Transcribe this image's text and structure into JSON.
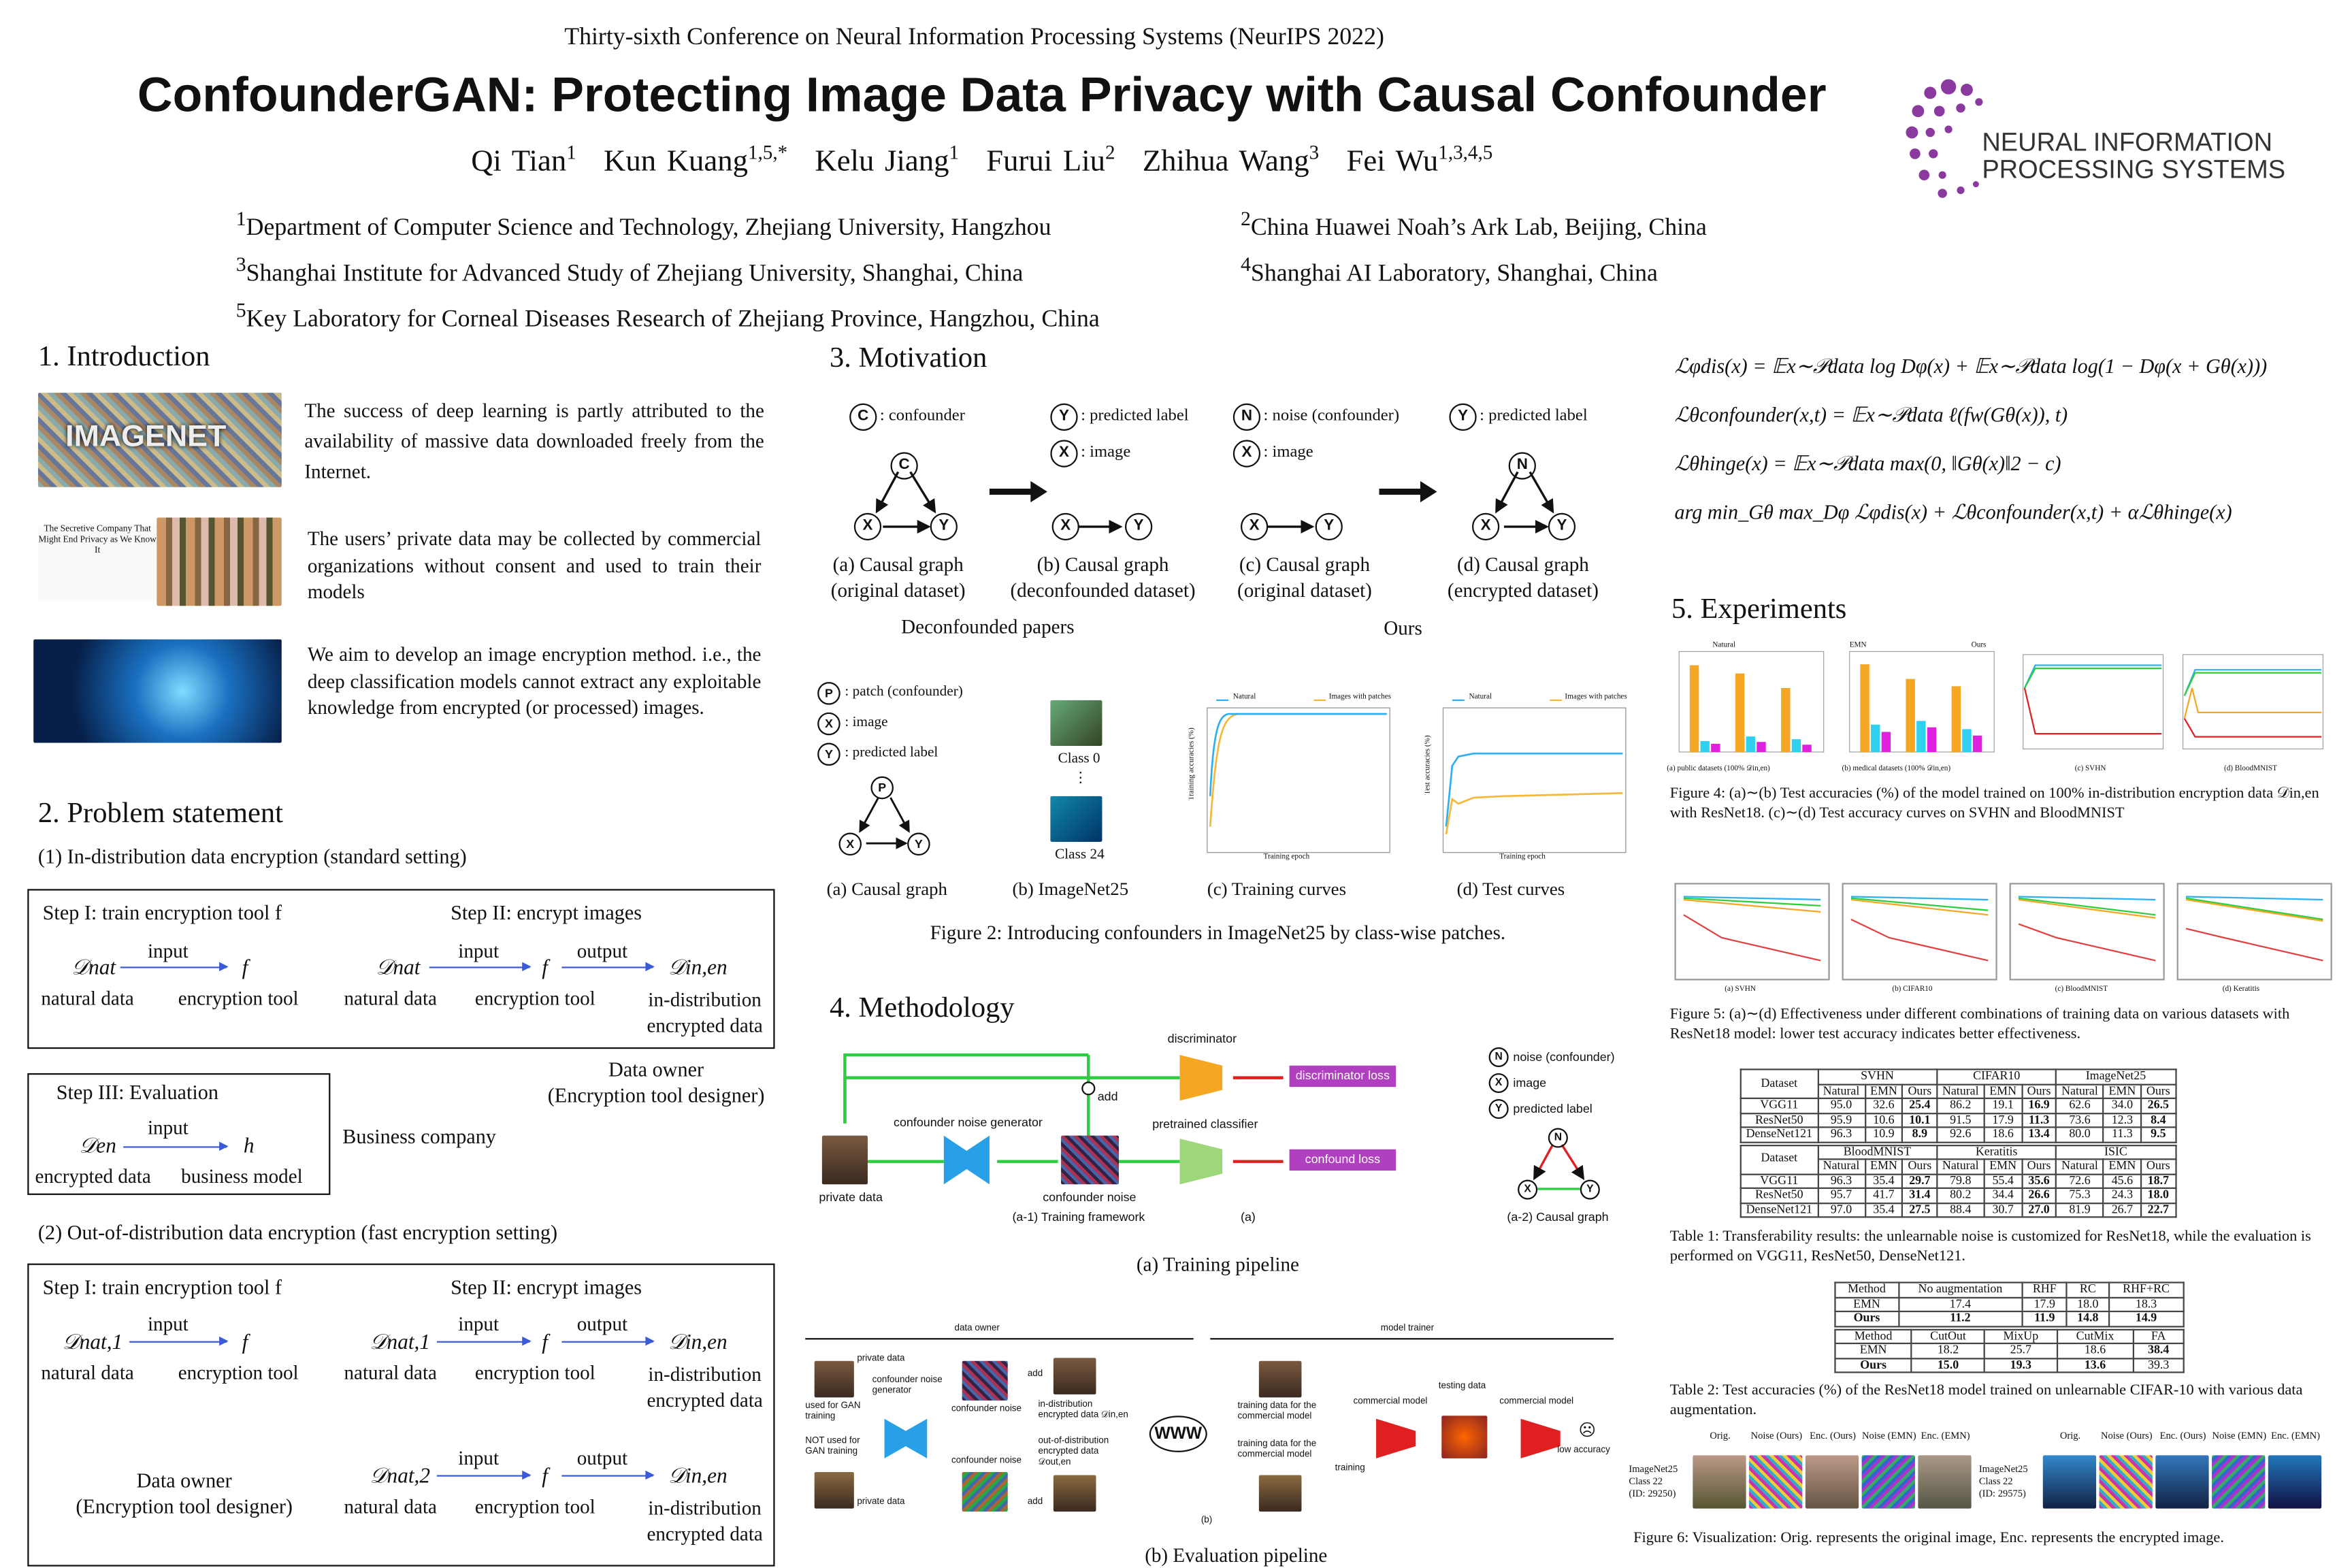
{
  "header": {
    "conference": "Thirty-sixth Conference on Neural Information Processing Systems (NeurIPS 2022)",
    "title": "ConfounderGAN: Protecting Image Data Privacy with Causal Confounder",
    "authors": [
      {
        "name": "Qi Tian",
        "sup": "1"
      },
      {
        "name": "Kun Kuang",
        "sup": "1,5,*"
      },
      {
        "name": "Kelu Jiang",
        "sup": "1"
      },
      {
        "name": "Furui Liu",
        "sup": "2"
      },
      {
        "name": "Zhihua Wang",
        "sup": "3"
      },
      {
        "name": "Fei Wu",
        "sup": "1,3,4,5"
      }
    ],
    "affiliations": [
      {
        "sup": "1",
        "text": "Department of Computer Science and Technology, Zhejiang University, Hangzhou"
      },
      {
        "sup": "3",
        "text": "Shanghai Institute for Advanced Study of Zhejiang University, Shanghai, China"
      },
      {
        "sup": "5",
        "text": "Key Laboratory for Corneal Diseases Research of Zhejiang Province, Hangzhou, China"
      },
      {
        "sup": "2",
        "text": "China Huawei Noah’s Ark Lab, Beijing, China"
      },
      {
        "sup": "4",
        "text": "Shanghai AI Laboratory, Shanghai, China"
      }
    ],
    "logo_text": [
      "NEURAL INFORMATION",
      "PROCESSING SYSTEMS"
    ],
    "logo_color": "#8a3a9e"
  },
  "intro": {
    "heading": "1. Introduction",
    "imagenet_logo": "IMAGENET",
    "news_caption": "The Secretive Company That Might End Privacy as We Know It",
    "para1": "The success of deep learning is partly attributed to the availability of massive data downloaded freely from the Internet.",
    "para2": "The users’ private data may be collected by commercial organizations without consent and used to train their models",
    "para3": "We aim to develop an image encryption method. i.e., the deep classification models cannot extract any exploitable knowledge from encrypted (or processed) images."
  },
  "problem": {
    "heading": "2. Problem statement",
    "sub1": "(1) In-distribution data encryption (standard setting)",
    "sub2": "(2) Out-of-distribution data encryption (fast encryption setting)",
    "step1": "Step I: train encryption tool f",
    "step2": "Step II: encrypt images",
    "step3": "Step III: Evaluation",
    "input": "input",
    "output": "output",
    "d_nat": "𝒟nat",
    "d_nat1": "𝒟nat,1",
    "d_nat2": "𝒟nat,2",
    "d_inen": "𝒟in,en",
    "d_en": "𝒟en",
    "f": "f",
    "h": "h",
    "natural_data": "natural data",
    "encryption_tool": "encryption tool",
    "in_dist": "in-distribution",
    "encrypted_data": "encrypted data",
    "business_model": "business model",
    "data_owner": "Data owner",
    "designer": "(Encryption tool designer)",
    "business_company": "Business company"
  },
  "motivation": {
    "heading": "3. Motivation",
    "legend": {
      "c": "C",
      "confounder": ": confounder",
      "y": "Y",
      "predicted": ": predicted label",
      "x": "X",
      "image": ": image",
      "n": "N",
      "noise": ": noise (confounder)"
    },
    "captions": [
      "(a) Causal graph",
      "(original dataset)",
      "(b) Causal graph",
      "(deconfounded dataset)",
      "(c) Causal graph",
      "(original dataset)",
      "(d) Causal graph",
      "(encrypted dataset)"
    ],
    "deconf_papers": "Deconfounded papers",
    "ours": "Ours",
    "fig2": {
      "p": "P",
      "patch": ": patch (confounder)",
      "image": ": image",
      "pred": ": predicted label",
      "class0": "Class 0",
      "dots": "⋮",
      "class24": "Class 24",
      "subcaps": [
        "(a)  Causal graph",
        "(b)  ImageNet25",
        "(c)  Training curves",
        "(d)  Test curves"
      ],
      "legend_natural": "Natural",
      "legend_patches": "Images with patches",
      "xlabel": "Training epoch",
      "ylabel_train": "Training accuracies (%)",
      "ylabel_test": "Test accuracies (%)",
      "caption": "Figure 2: Introducing confounders in ImageNet25 by class-wise patches."
    }
  },
  "method": {
    "heading": "4. Methodology",
    "train": {
      "discriminator": "discriminator",
      "disc_loss": "discriminator loss",
      "generator": "confounder noise generator",
      "add": "add",
      "pretrained": "pretrained classifier",
      "conf_loss": "confound loss",
      "private": "private data",
      "noise": "confounder noise",
      "sub": "(a-1) Training framework",
      "a": "(a)",
      "a2": "(a-2) Causal graph",
      "n": "noise (confounder)",
      "x": "image",
      "y": "predicted label",
      "caption": "(a) Training pipeline"
    },
    "eval": {
      "data_owner": "data owner",
      "model_trainer": "model trainer",
      "private": "private data",
      "used": "used for GAN training",
      "not_used": "NOT used for GAN training",
      "gen": "confounder noise generator",
      "noise": "confounder noise",
      "add": "add",
      "in_dist": "in-distribution encrypted data 𝒟in,en",
      "out_dist": "out-of-distribution encrypted data 𝒟out,en",
      "www": "WWW",
      "train1": "training data for the commercial model",
      "train2": "training data for the commercial model",
      "training": "training",
      "commercial": "commercial model",
      "testing": "testing data",
      "low": "low accuracy",
      "b": "(b)",
      "caption": "(b) Evaluation pipeline"
    }
  },
  "equations": [
    "ℒφdis(x) = 𝔼x∼𝒫data log Dφ(x) + 𝔼x∼𝒫data log(1 − Dφ(x + Gθ(x)))",
    "ℒθconfounder(x,t) = 𝔼x∼𝒫data ℓ(fw(Gθ(x)), t)",
    "ℒθhinge(x) = 𝔼x∼𝒫data max(0, ‖Gθ(x)‖2 − c)",
    "arg min_Gθ max_Dφ ℒφdis(x) + ℒθconfounder(x,t) + αℒθhinge(x)"
  ],
  "experiments": {
    "heading": "5. Experiments",
    "fig4_caption": "Figure 4: (a)∼(b) Test accuracies (%) of the model trained on 100% in-distribution encryption data 𝒟in,en with ResNet18. (c)∼(d) Test accuracy curves on SVHN and BloodMNIST",
    "fig4_subcaps": [
      "(a) public datasets (100% 𝒟in,en)",
      "(b) medical datasets (100% 𝒟in,en)",
      "(c) SVHN",
      "(d) BloodMNIST"
    ],
    "fig4_legend": [
      "Natural",
      "EMN",
      "Ours"
    ],
    "fig5_caption": "Figure 5: (a)∼(d) Effectiveness under different combinations of training data on various datasets with ResNet18 model: lower test accuracy indicates better effectiveness.",
    "fig5_subcaps": [
      "(a) SVHN",
      "(b) CIFAR10",
      "(c) BloodMNIST",
      "(d) Keratitis"
    ],
    "table1": {
      "head1": [
        "SVHN",
        "CIFAR10",
        "ImageNet25"
      ],
      "head2": [
        "BloodMNIST",
        "Keratitis",
        "ISIC"
      ],
      "dataset": "Dataset",
      "cols": [
        "Natural",
        "EMN",
        "Ours"
      ],
      "rows1": [
        [
          "VGG11",
          "95.0",
          "32.6",
          "25.4",
          "86.2",
          "19.1",
          "16.9",
          "62.6",
          "34.0",
          "26.5"
        ],
        [
          "ResNet50",
          "95.9",
          "10.6",
          "10.1",
          "91.5",
          "17.9",
          "11.3",
          "73.6",
          "12.3",
          "8.4"
        ],
        [
          "DenseNet121",
          "96.3",
          "10.9",
          "8.9",
          "92.6",
          "18.6",
          "13.4",
          "80.0",
          "11.3",
          "9.5"
        ]
      ],
      "rows2": [
        [
          "VGG11",
          "96.3",
          "35.4",
          "29.7",
          "79.8",
          "55.4",
          "35.6",
          "72.6",
          "45.6",
          "18.7"
        ],
        [
          "ResNet50",
          "95.7",
          "41.7",
          "31.4",
          "80.2",
          "34.4",
          "26.6",
          "75.3",
          "24.3",
          "18.0"
        ],
        [
          "DenseNet121",
          "97.0",
          "35.4",
          "27.5",
          "88.4",
          "30.7",
          "27.0",
          "81.9",
          "26.7",
          "22.7"
        ]
      ],
      "caption": "Table 1: Transferability results: the unlearnable noise is customized for ResNet18, while the evaluation is performed on VGG11, ResNet50, DenseNet121."
    },
    "table2": {
      "head1": [
        "Method",
        "No augmentation",
        "RHF",
        "RC",
        "RHF+RC"
      ],
      "rows1": [
        [
          "EMN",
          "17.4",
          "17.9",
          "18.0",
          "18.3"
        ],
        [
          "Ours",
          "11.2",
          "11.9",
          "14.8",
          "14.9"
        ]
      ],
      "head2": [
        "Method",
        "CutOut",
        "MixUp",
        "CutMix",
        "FA"
      ],
      "rows2": [
        [
          "EMN",
          "18.2",
          "25.7",
          "18.6",
          "38.4"
        ],
        [
          "Ours",
          "15.0",
          "19.3",
          "13.6",
          "39.3"
        ]
      ],
      "caption": "Table 2: Test accuracies (%) of the ResNet18 model trained on unlearnable CIFAR-10 with various data augmentation."
    },
    "fig6": {
      "headers": [
        "Orig.",
        "Noise (Ours)",
        "Enc. (Ours)",
        "Noise (EMN)",
        "Enc. (EMN)"
      ],
      "label1": [
        "ImageNet25",
        "Class 22",
        "(ID: 29250)"
      ],
      "label2": [
        "ImageNet25",
        "Class 22",
        "(ID: 29575)"
      ],
      "caption": "Figure 6: Visualization: Orig. represents the original image, Enc. represents the encrypted image."
    }
  },
  "colors": {
    "arrow": "#3a5ad8",
    "natural": "#f5a623",
    "emn": "#2fd0f0",
    "ours": "#e020e0",
    "loss": "#b040c0",
    "generator": "#28a0e8",
    "disc": "#f5a623",
    "green": "#2ecc40",
    "red": "#e02020"
  }
}
